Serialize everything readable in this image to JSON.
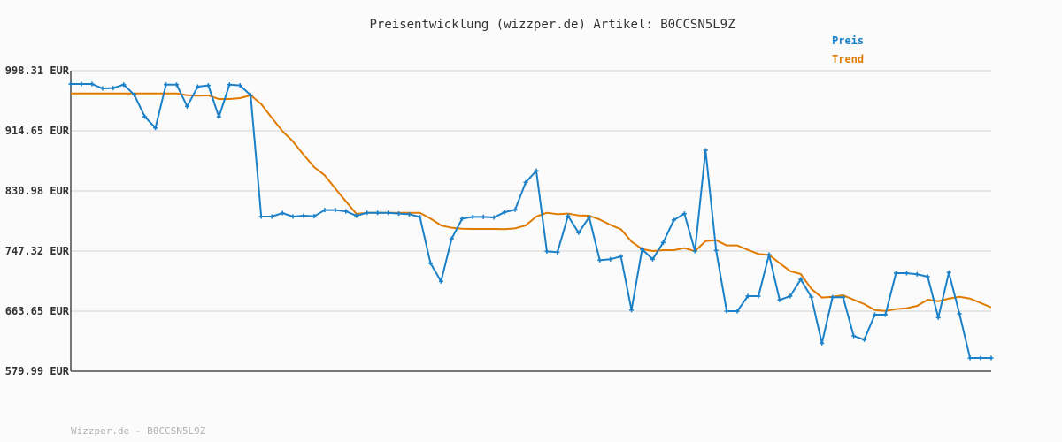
{
  "chart_data": {
    "type": "line",
    "title": "Preisentwicklung (wizzper.de) Artikel: B0CCSN5L9Z",
    "xlabel": "",
    "ylabel": "",
    "ylim": [
      579.99,
      998.31
    ],
    "yticks": [
      "998.31 EUR",
      "914.65 EUR",
      "830.98 EUR",
      "747.32 EUR",
      "663.65 EUR",
      "579.99 EUR"
    ],
    "ytick_values": [
      998.31,
      914.65,
      830.98,
      747.32,
      663.65,
      579.99
    ],
    "grid": true,
    "legend_placement": "top-right",
    "series": [
      {
        "name": "Preis",
        "color": "#1a80c8",
        "markers": true,
        "values": [
          979.8,
          979.8,
          979.8,
          973.7,
          974.1,
          979.0,
          964.7,
          934.3,
          918.7,
          979.0,
          979.0,
          948.7,
          976.2,
          977.8,
          934.0,
          979.0,
          977.8,
          964.2,
          795.3,
          795.3,
          800.2,
          795.3,
          796.5,
          795.7,
          804.3,
          804.3,
          802.7,
          796.5,
          800.6,
          800.6,
          800.6,
          799.4,
          798.6,
          794.7,
          730.5,
          705.1,
          764.5,
          792.5,
          794.9,
          794.9,
          794.1,
          801.4,
          804.8,
          842.9,
          858.9,
          746.9,
          745.7,
          796.2,
          772.8,
          794.4,
          734.6,
          735.9,
          739.9,
          665.2,
          749.8,
          735.9,
          759.2,
          790.4,
          799.4,
          747.3,
          887.6,
          748.2,
          663.6,
          663.6,
          684.6,
          684.6,
          742.4,
          679.3,
          684.6,
          707.9,
          683.3,
          619.0,
          683.0,
          683.0,
          629.2,
          623.9,
          658.7,
          658.7,
          716.6,
          716.6,
          715.0,
          711.6,
          654.7,
          717.4,
          660.0,
          598.4,
          598.4,
          598.4
        ]
      },
      {
        "name": "Trend",
        "color": "#e07b00",
        "markers": false,
        "values": [
          966.7,
          966.7,
          966.7,
          966.7,
          966.7,
          966.7,
          966.7,
          966.7,
          966.7,
          966.7,
          966.7,
          964.2,
          963.5,
          963.9,
          958.9,
          958.9,
          960.2,
          964.2,
          951.9,
          932.7,
          914.3,
          899.9,
          881.4,
          864.2,
          852.7,
          834.3,
          816.6,
          799.0,
          800.6,
          800.6,
          800.6,
          800.6,
          800.6,
          800.6,
          792.5,
          783.0,
          779.7,
          778.4,
          778.1,
          778.1,
          778.1,
          777.7,
          778.9,
          783.0,
          795.3,
          800.6,
          798.6,
          799.4,
          796.9,
          796.5,
          791.2,
          783.8,
          777.7,
          760.5,
          750.1,
          747.3,
          748.5,
          748.5,
          751.4,
          747.0,
          761.2,
          762.4,
          755.1,
          755.1,
          748.9,
          743.2,
          742.0,
          730.5,
          719.4,
          715.3,
          694.8,
          682.5,
          683.7,
          685.8,
          679.6,
          673.5,
          665.2,
          664.0,
          666.5,
          667.7,
          671.0,
          679.6,
          677.5,
          681.2,
          683.7,
          681.2,
          675.1,
          668.9
        ]
      }
    ]
  },
  "footer": "Wizzper.de - B0CCSN5L9Z",
  "colors": {
    "grid": "#e6e6e6",
    "axis": "#777777"
  }
}
